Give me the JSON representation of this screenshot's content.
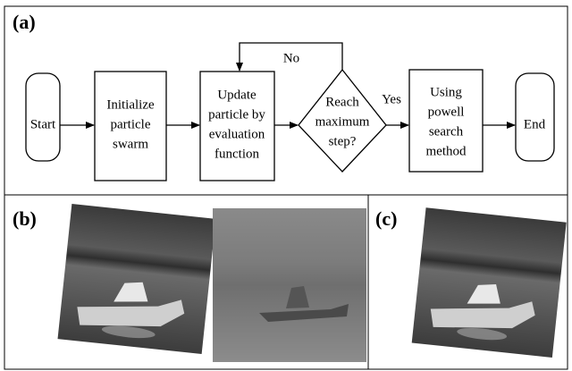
{
  "panels": {
    "a": {
      "label": "(a)"
    },
    "b": {
      "label": "(b)"
    },
    "c": {
      "label": "(c)"
    }
  },
  "flowchart": {
    "nodes": [
      {
        "lines": [
          "Start"
        ]
      },
      {
        "lines": [
          "Initialize",
          "particle",
          "swarm"
        ]
      },
      {
        "lines": [
          "Update",
          "particle by",
          "evaluation",
          "function"
        ]
      },
      {
        "lines": [
          "Reach",
          "maximum",
          "step?"
        ]
      },
      {
        "lines": [
          "Using",
          "powell",
          "search",
          "method"
        ]
      },
      {
        "lines": [
          "End"
        ]
      }
    ],
    "edges": [
      {
        "label": "No"
      },
      {
        "label": "Yes"
      }
    ]
  }
}
